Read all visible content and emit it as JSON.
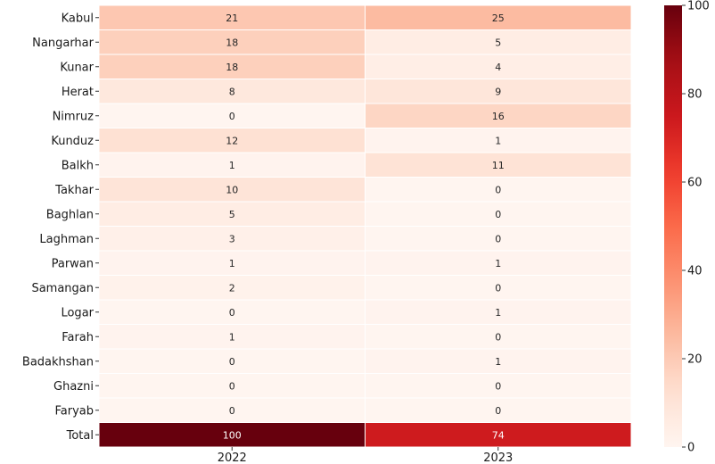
{
  "chart_data": {
    "type": "heatmap",
    "title": "",
    "xlabel": "",
    "ylabel": "",
    "columns": [
      "2022",
      "2023"
    ],
    "rows": [
      "Kabul",
      "Nangarhar",
      "Kunar",
      "Herat",
      "Nimruz",
      "Kunduz",
      "Balkh",
      "Takhar",
      "Baghlan",
      "Laghman",
      "Parwan",
      "Samangan",
      "Logar",
      "Farah",
      "Badakhshan",
      "Ghazni",
      "Faryab",
      "Total"
    ],
    "values": [
      [
        21,
        25
      ],
      [
        18,
        5
      ],
      [
        18,
        4
      ],
      [
        8,
        9
      ],
      [
        0,
        16
      ],
      [
        12,
        1
      ],
      [
        1,
        11
      ],
      [
        10,
        0
      ],
      [
        5,
        0
      ],
      [
        3,
        0
      ],
      [
        1,
        1
      ],
      [
        2,
        0
      ],
      [
        0,
        1
      ],
      [
        1,
        0
      ],
      [
        0,
        1
      ],
      [
        0,
        0
      ],
      [
        0,
        0
      ],
      [
        100,
        74
      ]
    ],
    "colorbar": {
      "colormap": "Reds",
      "vmin": 0,
      "vmax": 100,
      "ticks": [
        0,
        20,
        40,
        60,
        80,
        100
      ]
    },
    "annotations": true
  }
}
